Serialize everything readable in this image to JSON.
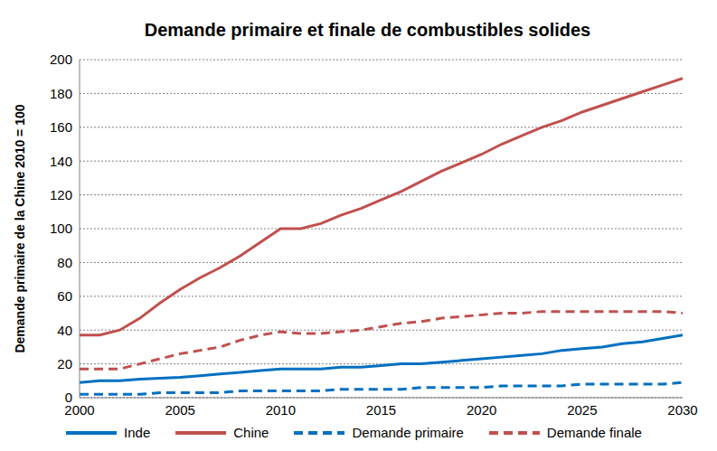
{
  "chart_data": {
    "type": "line",
    "title": "Demande primaire et finale de combustibles solides",
    "y_label": "Demande primaire de la Chine 2010 = 100",
    "x": [
      2000,
      2001,
      2002,
      2003,
      2004,
      2005,
      2006,
      2007,
      2008,
      2009,
      2010,
      2011,
      2012,
      2013,
      2014,
      2015,
      2016,
      2017,
      2018,
      2019,
      2020,
      2021,
      2022,
      2023,
      2024,
      2025,
      2026,
      2027,
      2028,
      2029,
      2030
    ],
    "series": [
      {
        "name": "Inde",
        "color": "#0070c0",
        "line_style": "solid",
        "values": [
          9,
          10,
          10,
          11,
          11.5,
          12,
          13,
          14,
          15,
          16,
          17,
          17,
          17,
          18,
          18,
          19,
          20,
          20,
          21,
          22,
          23,
          24,
          25,
          26,
          28,
          29,
          30,
          32,
          33,
          35,
          37
        ]
      },
      {
        "name": "Chine",
        "color": "#c0504d",
        "line_style": "solid",
        "values": [
          37,
          37,
          40,
          47,
          56,
          64,
          71,
          77,
          84,
          92,
          100,
          100,
          103,
          108,
          112,
          117,
          122,
          128,
          134,
          139,
          144,
          150,
          155,
          160,
          164,
          169,
          173,
          177,
          181,
          185,
          189
        ]
      },
      {
        "name": "Demande primaire",
        "color": "#0070c0",
        "line_style": "dashed",
        "values": [
          2,
          2,
          2,
          2,
          3,
          3,
          3,
          3,
          4,
          4,
          4,
          4,
          4,
          5,
          5,
          5,
          5,
          6,
          6,
          6,
          6,
          7,
          7,
          7,
          7,
          8,
          8,
          8,
          8,
          8,
          9
        ]
      },
      {
        "name": "Demande finale",
        "color": "#c0504d",
        "line_style": "dashed",
        "values": [
          17,
          17,
          17,
          20,
          23,
          26,
          28,
          30,
          34,
          37,
          39,
          38,
          38,
          39,
          40,
          42,
          44,
          45,
          47,
          48,
          49,
          50,
          50,
          51,
          51,
          51,
          51,
          51,
          51,
          51,
          50
        ]
      }
    ],
    "xlim": [
      2000,
      2030
    ],
    "xticks": [
      2000,
      2005,
      2010,
      2015,
      2020,
      2025,
      2030
    ],
    "ylim": [
      0,
      200
    ],
    "yticks": [
      0,
      20,
      40,
      60,
      80,
      100,
      120,
      140,
      160,
      180,
      200
    ],
    "grid": true,
    "legend": "bottom"
  }
}
